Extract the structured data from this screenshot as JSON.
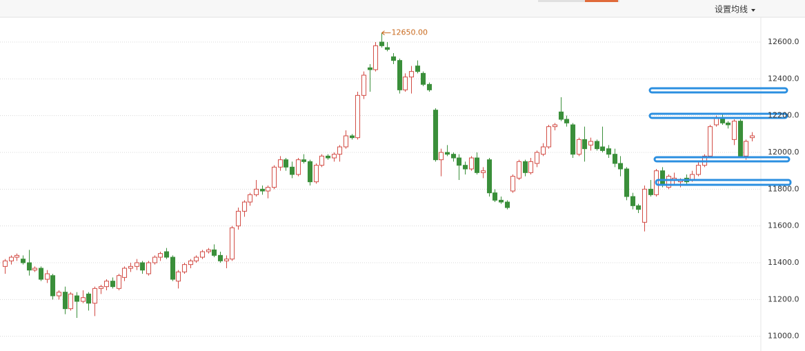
{
  "chart_data": {
    "type": "candlestick",
    "settings_button": "设置均线",
    "up_color": "#d24a43",
    "down_color": "#3a8f3a",
    "grid": true,
    "ylim": [
      10920,
      12735
    ],
    "yticks": [
      {
        "value": 11000,
        "label": "11000.0"
      },
      {
        "value": 11200,
        "label": "11200.0"
      },
      {
        "value": 11400,
        "label": "11400.0"
      },
      {
        "value": 11600,
        "label": "11600.0"
      },
      {
        "value": 11800,
        "label": "11800.0"
      },
      {
        "value": 12000,
        "label": "12000.0"
      },
      {
        "value": 12200,
        "label": "12200.0"
      },
      {
        "value": 12400,
        "label": "12400.0"
      },
      {
        "value": 12600,
        "label": "12600.0"
      }
    ],
    "max_annotation": {
      "value": 12650,
      "label": "12650.00"
    },
    "open": [
      11380,
      11410,
      11430,
      11420,
      11400,
      11360,
      11370,
      11310,
      11330,
      11220,
      11240,
      11150,
      11220,
      11190,
      11230,
      11180,
      11260,
      11270,
      11300,
      11260,
      11320,
      11370,
      11380,
      11400,
      11340,
      11400,
      11430,
      11460,
      11430,
      11300,
      11350,
      11390,
      11410,
      11430,
      11460,
      11470,
      11440,
      11410,
      11420,
      11600,
      11680,
      11730,
      11770,
      11800,
      11790,
      11810,
      11920,
      11960,
      11920,
      11880,
      11960,
      11950,
      11840,
      11930,
      11980,
      11970,
      11990,
      12030,
      12090,
      12080,
      12310,
      12460,
      12450,
      12600,
      12570,
      12520,
      12500,
      12340,
      12410,
      12470,
      12430,
      12370,
      12230,
      11960,
      12000,
      11990,
      11970,
      11930,
      11910,
      11970,
      11890,
      11960,
      11780,
      11740,
      11730,
      11790,
      11860,
      11950,
      11890,
      11940,
      11990,
      12030,
      12140,
      12220,
      12180,
      12150,
      11990,
      12070,
      12040,
      12060,
      12030,
      12020,
      11990,
      11940,
      11910,
      11760,
      11710,
      11620,
      11800,
      11770,
      11900,
      11810,
      11850,
      11840,
      11860,
      11850,
      11880,
      11930,
      11980,
      12150,
      12190,
      12160,
      12070,
      12170,
      11980,
      12080
    ],
    "high": [
      11420,
      11440,
      11450,
      11440,
      11470,
      11380,
      11380,
      11360,
      11340,
      11250,
      11270,
      11240,
      11240,
      11250,
      11240,
      11270,
      11280,
      11310,
      11320,
      11340,
      11380,
      11400,
      11420,
      11410,
      11410,
      11440,
      11460,
      11480,
      11440,
      11360,
      11400,
      11420,
      11440,
      11470,
      11480,
      11500,
      11460,
      11440,
      11600,
      11700,
      11740,
      11780,
      11850,
      11820,
      11820,
      11930,
      11980,
      11970,
      11950,
      11970,
      11990,
      11960,
      11940,
      11990,
      11990,
      12000,
      12040,
      12120,
      12100,
      12330,
      12440,
      12480,
      12600,
      12650,
      12600,
      12540,
      12510,
      12430,
      12470,
      12500,
      12440,
      12380,
      12240,
      12020,
      12040,
      12000,
      11990,
      11950,
      11980,
      12000,
      11920,
      11970,
      11800,
      11760,
      11740,
      11880,
      11960,
      11960,
      11970,
      12010,
      12050,
      12150,
      12160,
      12300,
      12200,
      12160,
      12080,
      12140,
      12080,
      12070,
      12140,
      12040,
      12020,
      11980,
      11920,
      11780,
      11720,
      11820,
      11850,
      11910,
      11920,
      11880,
      11890,
      11860,
      11880,
      11900,
      11950,
      11990,
      12150,
      12200,
      12210,
      12170,
      12180,
      12180,
      12070,
      12110
    ],
    "low": [
      11340,
      11390,
      11410,
      11390,
      11330,
      11350,
      11300,
      11290,
      11200,
      11200,
      11120,
      11140,
      11100,
      11180,
      11140,
      11110,
      11230,
      11250,
      11260,
      11250,
      11300,
      11350,
      11360,
      11340,
      11330,
      11390,
      11410,
      11420,
      11300,
      11260,
      11340,
      11370,
      11400,
      11420,
      11450,
      11430,
      11400,
      11370,
      11410,
      11580,
      11650,
      11710,
      11760,
      11770,
      11750,
      11800,
      11900,
      11900,
      11860,
      11870,
      11940,
      11820,
      11830,
      11920,
      11960,
      11950,
      11950,
      12020,
      12070,
      12070,
      12290,
      12330,
      12440,
      12570,
      12550,
      12480,
      12320,
      12330,
      12320,
      12430,
      12360,
      12330,
      11950,
      11870,
      11980,
      11950,
      11850,
      11880,
      11900,
      11880,
      11860,
      11760,
      11730,
      11720,
      11690,
      11780,
      11850,
      11870,
      11880,
      11920,
      11980,
      12020,
      12120,
      12170,
      12140,
      11970,
      11980,
      11950,
      12010,
      12010,
      12000,
      11970,
      11920,
      11870,
      11740,
      11690,
      11670,
      11570,
      11760,
      11760,
      11810,
      11800,
      11820,
      11810,
      11820,
      11840,
      11870,
      11920,
      11970,
      12140,
      12150,
      12130,
      12040,
      11970,
      11960,
      12060
    ],
    "close": [
      11410,
      11430,
      11440,
      11400,
      11360,
      11370,
      11310,
      11340,
      11220,
      11240,
      11150,
      11230,
      11190,
      11210,
      11180,
      11260,
      11270,
      11300,
      11270,
      11330,
      11370,
      11380,
      11400,
      11360,
      11400,
      11430,
      11450,
      11430,
      11310,
      11350,
      11390,
      11410,
      11430,
      11460,
      11470,
      11440,
      11410,
      11420,
      11590,
      11680,
      11730,
      11770,
      11800,
      11790,
      11810,
      11920,
      11960,
      11920,
      11880,
      11960,
      11950,
      11840,
      11930,
      11980,
      11970,
      11990,
      12030,
      12090,
      12080,
      12310,
      12420,
      12450,
      12580,
      12580,
      12560,
      12500,
      12340,
      12410,
      12440,
      12440,
      12370,
      12340,
      11960,
      12000,
      11990,
      11970,
      11930,
      11910,
      11970,
      11890,
      11900,
      11780,
      11740,
      11730,
      11700,
      11870,
      11950,
      11890,
      11950,
      12000,
      12030,
      12140,
      12150,
      12180,
      12160,
      11990,
      12070,
      12020,
      12060,
      12020,
      12010,
      11990,
      11940,
      11910,
      11760,
      11710,
      11690,
      11800,
      11770,
      11900,
      11830,
      11870,
      11860,
      11850,
      11840,
      11880,
      11930,
      11980,
      12140,
      12190,
      12160,
      12150,
      12170,
      11980,
      12060,
      12090
    ]
  }
}
